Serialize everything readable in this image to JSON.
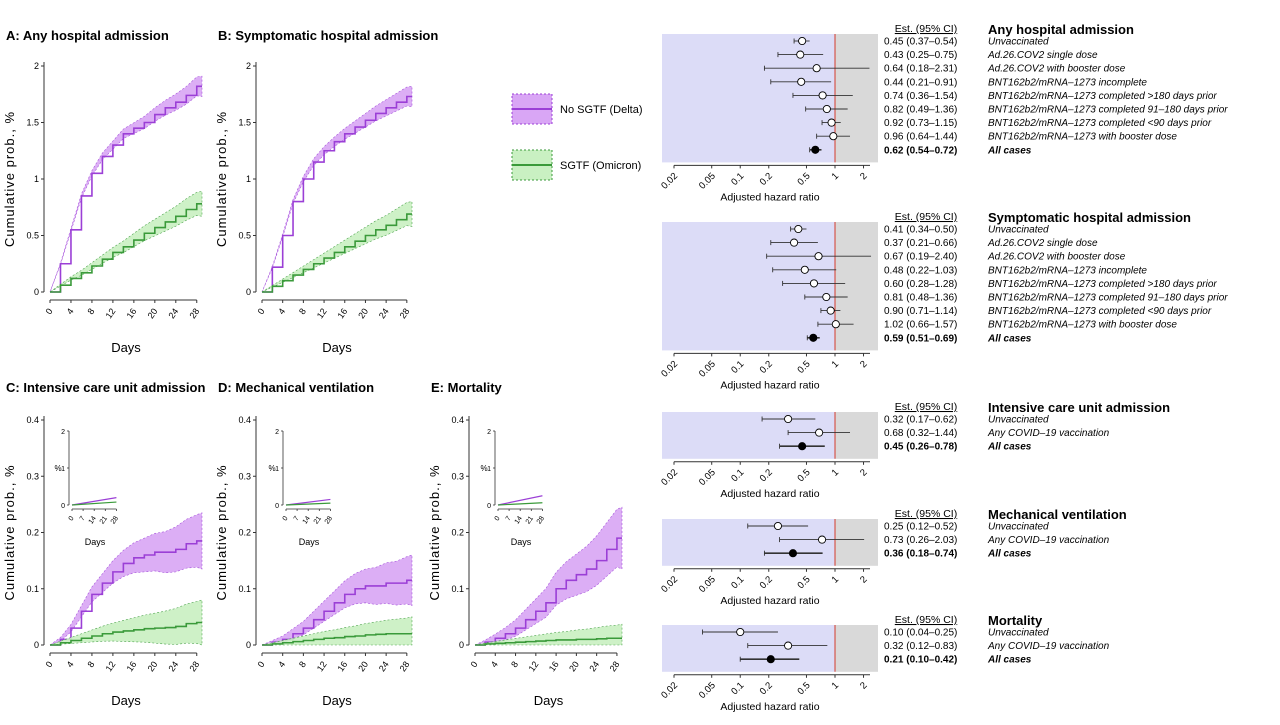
{
  "colors": {
    "delta": "#9b3fd6",
    "delta_fill": "#d9a6f5",
    "omicron": "#3a9a3a",
    "omicron_fill": "#c9f0c2",
    "forest_bg": "#dcdcf7",
    "forest_bg_right": "#d9d9d9",
    "ref_line": "#d43c2c"
  },
  "legend": {
    "delta_label": "No SGTF (Delta)",
    "omicron_label": "SGTF (Omicron)"
  },
  "km_common": {
    "xlabel": "Days",
    "ylabel": "Cumulative prob., %",
    "x_ticks": [
      0,
      4,
      8,
      12,
      16,
      20,
      24,
      28
    ],
    "inset_y_ticks": [
      0,
      1,
      2
    ],
    "inset_ylabel": "%",
    "inset_x_ticks": [
      0,
      7,
      14,
      21,
      28
    ],
    "inset_xlabel": "Days"
  },
  "forest_common": {
    "header": "Est. (95% CI)",
    "xlabel": "Adjusted hazard ratio",
    "x_ticks": [
      "0.02",
      "0.05",
      "0.1",
      "0.2",
      "0.5",
      "1",
      "2"
    ],
    "x_tick_values": [
      0.02,
      0.05,
      0.1,
      0.2,
      0.5,
      1,
      2
    ]
  },
  "chart_data": [
    {
      "type": "line",
      "panel": "A",
      "title": "A: Any hospital admission",
      "xlabel": "Days",
      "ylabel": "Cumulative prob., %",
      "xlim": [
        0,
        29
      ],
      "ylim": [
        0,
        2
      ],
      "y_ticks": [
        "0",
        "0.5",
        "1",
        "1.5",
        "2"
      ],
      "x": [
        0,
        2,
        4,
        6,
        8,
        10,
        12,
        14,
        16,
        18,
        20,
        22,
        24,
        26,
        28,
        29
      ],
      "series": [
        {
          "name": "No SGTF (Delta)",
          "values": [
            0,
            0.25,
            0.55,
            0.85,
            1.05,
            1.2,
            1.3,
            1.4,
            1.45,
            1.5,
            1.57,
            1.63,
            1.68,
            1.74,
            1.82,
            1.82
          ],
          "band": 0.09
        },
        {
          "name": "SGTF (Omicron)",
          "values": [
            0,
            0.06,
            0.12,
            0.17,
            0.23,
            0.29,
            0.35,
            0.4,
            0.46,
            0.52,
            0.57,
            0.62,
            0.67,
            0.73,
            0.78,
            0.78
          ],
          "band": 0.11
        }
      ]
    },
    {
      "type": "line",
      "panel": "B",
      "title": "B: Symptomatic hospital admission",
      "xlabel": "Days",
      "ylabel": "Cumulative prob., %",
      "xlim": [
        0,
        29
      ],
      "ylim": [
        0,
        2
      ],
      "y_ticks": [
        "0",
        "0.5",
        "1",
        "1.5",
        "2"
      ],
      "x": [
        0,
        2,
        4,
        6,
        8,
        10,
        12,
        14,
        16,
        18,
        20,
        22,
        24,
        26,
        28,
        29
      ],
      "series": [
        {
          "name": "No SGTF (Delta)",
          "values": [
            0,
            0.22,
            0.5,
            0.8,
            1.0,
            1.15,
            1.25,
            1.33,
            1.4,
            1.46,
            1.52,
            1.58,
            1.63,
            1.68,
            1.73,
            1.73
          ],
          "band": 0.09
        },
        {
          "name": "SGTF (Omicron)",
          "values": [
            0,
            0.05,
            0.1,
            0.15,
            0.2,
            0.25,
            0.3,
            0.35,
            0.4,
            0.45,
            0.5,
            0.55,
            0.59,
            0.64,
            0.69,
            0.69
          ],
          "band": 0.11
        }
      ]
    },
    {
      "type": "line",
      "panel": "C",
      "title": "C: Intensive care unit admission",
      "xlabel": "Days",
      "ylabel": "Cumulative prob., %",
      "xlim": [
        0,
        29
      ],
      "ylim": [
        0,
        0.4
      ],
      "y_ticks": [
        "0",
        "0.1",
        "0.2",
        "0.3",
        "0.4"
      ],
      "x": [
        0,
        2,
        4,
        6,
        8,
        10,
        12,
        14,
        16,
        18,
        20,
        22,
        24,
        26,
        28,
        29
      ],
      "series": [
        {
          "name": "No SGTF (Delta)",
          "values": [
            0,
            0.01,
            0.03,
            0.06,
            0.09,
            0.11,
            0.13,
            0.145,
            0.155,
            0.16,
            0.165,
            0.165,
            0.17,
            0.18,
            0.185,
            0.185
          ],
          "band": 0.05
        },
        {
          "name": "SGTF (Omicron)",
          "values": [
            0,
            0.004,
            0.008,
            0.012,
            0.016,
            0.02,
            0.023,
            0.025,
            0.027,
            0.029,
            0.03,
            0.031,
            0.033,
            0.038,
            0.04,
            0.04
          ],
          "band": 0.04
        }
      ],
      "inset": {
        "ylim": [
          0,
          2
        ],
        "delta_end": 0.2,
        "omicron_end": 0.08
      }
    },
    {
      "type": "line",
      "panel": "D",
      "title": "D: Mechanical ventilation",
      "xlabel": "Days",
      "ylabel": "Cumulative prob., %",
      "xlim": [
        0,
        29
      ],
      "ylim": [
        0,
        0.4
      ],
      "y_ticks": [
        "0",
        "0.1",
        "0.2",
        "0.3",
        "0.4"
      ],
      "x": [
        0,
        2,
        4,
        6,
        8,
        10,
        12,
        14,
        16,
        18,
        20,
        22,
        24,
        26,
        28,
        29
      ],
      "series": [
        {
          "name": "No SGTF (Delta)",
          "values": [
            0,
            0.005,
            0.01,
            0.02,
            0.03,
            0.045,
            0.06,
            0.075,
            0.09,
            0.1,
            0.105,
            0.105,
            0.11,
            0.11,
            0.115,
            0.115
          ],
          "band": 0.045
        },
        {
          "name": "SGTF (Omicron)",
          "values": [
            0,
            0.002,
            0.004,
            0.006,
            0.008,
            0.01,
            0.012,
            0.013,
            0.015,
            0.016,
            0.018,
            0.019,
            0.02,
            0.02,
            0.02,
            0.02
          ],
          "band": 0.03
        }
      ],
      "inset": {
        "ylim": [
          0,
          2
        ],
        "delta_end": 0.15,
        "omicron_end": 0.05
      }
    },
    {
      "type": "line",
      "panel": "E",
      "title": "E: Mortality",
      "xlabel": "Days",
      "ylabel": "Cumulative prob., %",
      "xlim": [
        0,
        29
      ],
      "ylim": [
        0,
        0.4
      ],
      "y_ticks": [
        "0",
        "0.1",
        "0.2",
        "0.3",
        "0.4"
      ],
      "x": [
        0,
        2,
        4,
        6,
        8,
        10,
        12,
        14,
        16,
        18,
        20,
        22,
        24,
        26,
        28,
        29
      ],
      "series": [
        {
          "name": "No SGTF (Delta)",
          "values": [
            0,
            0.005,
            0.012,
            0.02,
            0.03,
            0.045,
            0.06,
            0.075,
            0.1,
            0.115,
            0.125,
            0.135,
            0.15,
            0.17,
            0.19,
            0.19
          ],
          "band": 0.055
        },
        {
          "name": "SGTF (Omicron)",
          "values": [
            0,
            0.002,
            0.003,
            0.004,
            0.005,
            0.006,
            0.007,
            0.008,
            0.009,
            0.009,
            0.01,
            0.01,
            0.011,
            0.012,
            0.012,
            0.012
          ],
          "band": 0.025
        }
      ],
      "inset": {
        "ylim": [
          0,
          2
        ],
        "delta_end": 0.25,
        "omicron_end": 0.06
      }
    },
    {
      "type": "forest",
      "title": "Any hospital admission",
      "rows": [
        {
          "label": "Unvaccinated",
          "est": "0.45 (0.37–0.54)",
          "hr": 0.45,
          "lo": 0.37,
          "hi": 0.54,
          "bold": false
        },
        {
          "label": "Ad.26.COV2 single dose",
          "est": "0.43 (0.25–0.75)",
          "hr": 0.43,
          "lo": 0.25,
          "hi": 0.75,
          "bold": false
        },
        {
          "label": "Ad.26.COV2 with booster dose",
          "est": "0.64 (0.18–2.31)",
          "hr": 0.64,
          "lo": 0.18,
          "hi": 2.31,
          "bold": false
        },
        {
          "label": "BNT162b2/mRNA–1273 incomplete",
          "est": "0.44 (0.21–0.91)",
          "hr": 0.44,
          "lo": 0.21,
          "hi": 0.91,
          "bold": false
        },
        {
          "label": "BNT162b2/mRNA–1273 completed >180 days prior",
          "est": "0.74 (0.36–1.54)",
          "hr": 0.74,
          "lo": 0.36,
          "hi": 1.54,
          "bold": false
        },
        {
          "label": "BNT162b2/mRNA–1273 completed 91–180 days prior",
          "est": "0.82 (0.49–1.36)",
          "hr": 0.82,
          "lo": 0.49,
          "hi": 1.36,
          "bold": false
        },
        {
          "label": "BNT162b2/mRNA–1273 completed <90 days prior",
          "est": "0.92 (0.73–1.15)",
          "hr": 0.92,
          "lo": 0.73,
          "hi": 1.15,
          "bold": false
        },
        {
          "label": "BNT162b2/mRNA–1273 with booster dose",
          "est": "0.96 (0.64–1.44)",
          "hr": 0.96,
          "lo": 0.64,
          "hi": 1.44,
          "bold": false
        },
        {
          "label": "All cases",
          "est": "0.62 (0.54–0.72)",
          "hr": 0.62,
          "lo": 0.54,
          "hi": 0.72,
          "bold": true
        }
      ]
    },
    {
      "type": "forest",
      "title": "Symptomatic hospital admission",
      "rows": [
        {
          "label": "Unvaccinated",
          "est": "0.41 (0.34–0.50)",
          "hr": 0.41,
          "lo": 0.34,
          "hi": 0.5,
          "bold": false
        },
        {
          "label": "Ad.26.COV2 single dose",
          "est": "0.37 (0.21–0.66)",
          "hr": 0.37,
          "lo": 0.21,
          "hi": 0.66,
          "bold": false
        },
        {
          "label": "Ad.26.COV2 with booster dose",
          "est": "0.67 (0.19–2.40)",
          "hr": 0.67,
          "lo": 0.19,
          "hi": 2.4,
          "bold": false
        },
        {
          "label": "BNT162b2/mRNA–1273 incomplete",
          "est": "0.48 (0.22–1.03)",
          "hr": 0.48,
          "lo": 0.22,
          "hi": 1.03,
          "bold": false
        },
        {
          "label": "BNT162b2/mRNA–1273 completed >180 days prior",
          "est": "0.60 (0.28–1.28)",
          "hr": 0.6,
          "lo": 0.28,
          "hi": 1.28,
          "bold": false
        },
        {
          "label": "BNT162b2/mRNA–1273 completed 91–180 days prior",
          "est": "0.81 (0.48–1.36)",
          "hr": 0.81,
          "lo": 0.48,
          "hi": 1.36,
          "bold": false
        },
        {
          "label": "BNT162b2/mRNA–1273 completed <90 days prior",
          "est": "0.90 (0.71–1.14)",
          "hr": 0.9,
          "lo": 0.71,
          "hi": 1.14,
          "bold": false
        },
        {
          "label": "BNT162b2/mRNA–1273 with booster dose",
          "est": "1.02 (0.66–1.57)",
          "hr": 1.02,
          "lo": 0.66,
          "hi": 1.57,
          "bold": false
        },
        {
          "label": "All cases",
          "est": "0.59 (0.51–0.69)",
          "hr": 0.59,
          "lo": 0.51,
          "hi": 0.69,
          "bold": true
        }
      ]
    },
    {
      "type": "forest",
      "title": "Intensive care unit admission",
      "rows": [
        {
          "label": "Unvaccinated",
          "est": "0.32 (0.17–0.62)",
          "hr": 0.32,
          "lo": 0.17,
          "hi": 0.62,
          "bold": false
        },
        {
          "label": "Any COVID–19 vaccination",
          "est": "0.68 (0.32–1.44)",
          "hr": 0.68,
          "lo": 0.32,
          "hi": 1.44,
          "bold": false
        },
        {
          "label": "All cases",
          "est": "0.45 (0.26–0.78)",
          "hr": 0.45,
          "lo": 0.26,
          "hi": 0.78,
          "bold": true
        }
      ]
    },
    {
      "type": "forest",
      "title": "Mechanical ventilation",
      "rows": [
        {
          "label": "Unvaccinated",
          "est": "0.25 (0.12–0.52)",
          "hr": 0.25,
          "lo": 0.12,
          "hi": 0.52,
          "bold": false
        },
        {
          "label": "Any COVID–19 vaccination",
          "est": "0.73 (0.26–2.03)",
          "hr": 0.73,
          "lo": 0.26,
          "hi": 2.03,
          "bold": false
        },
        {
          "label": "All cases",
          "est": "0.36 (0.18–0.74)",
          "hr": 0.36,
          "lo": 0.18,
          "hi": 0.74,
          "bold": true
        }
      ]
    },
    {
      "type": "forest",
      "title": "Mortality",
      "rows": [
        {
          "label": "Unvaccinated",
          "est": "0.10 (0.04–0.25)",
          "hr": 0.1,
          "lo": 0.04,
          "hi": 0.25,
          "bold": false
        },
        {
          "label": "Any COVID–19 vaccination",
          "est": "0.32 (0.12–0.83)",
          "hr": 0.32,
          "lo": 0.12,
          "hi": 0.83,
          "bold": false
        },
        {
          "label": "All cases",
          "est": "0.21 (0.10–0.42)",
          "hr": 0.21,
          "lo": 0.1,
          "hi": 0.42,
          "bold": true
        }
      ]
    }
  ]
}
